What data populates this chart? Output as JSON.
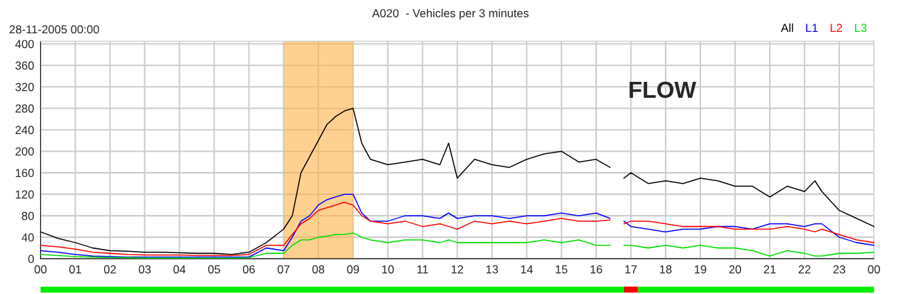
{
  "chart_data": {
    "type": "line",
    "title": "A020  - Vehicles per 3 minutes",
    "subtitle": "28-11-2005 00:00",
    "annotations": [
      "FLOW"
    ],
    "x": [
      0,
      0.5,
      1,
      1.5,
      2,
      2.5,
      3,
      3.5,
      4,
      4.5,
      5,
      5.5,
      6,
      6.5,
      7,
      7.25,
      7.5,
      7.75,
      8,
      8.25,
      8.5,
      8.75,
      9,
      9.25,
      9.5,
      10,
      10.5,
      11,
      11.5,
      11.75,
      12,
      12.5,
      13,
      13.5,
      14,
      14.5,
      15,
      15.5,
      16,
      16.4,
      16.6,
      16.8,
      17,
      17.5,
      18,
      18.5,
      19,
      19.5,
      20,
      20.5,
      21,
      21.5,
      22,
      22.3,
      22.5,
      23,
      23.5,
      24
    ],
    "series": [
      {
        "name": "All",
        "color": "#000000",
        "values": [
          50,
          38,
          30,
          20,
          15,
          14,
          12,
          12,
          11,
          10,
          10,
          8,
          12,
          30,
          55,
          80,
          160,
          190,
          220,
          250,
          265,
          275,
          280,
          215,
          185,
          175,
          180,
          185,
          175,
          215,
          150,
          185,
          175,
          170,
          185,
          195,
          200,
          180,
          185,
          170,
          null,
          150,
          160,
          140,
          145,
          140,
          150,
          145,
          135,
          135,
          115,
          135,
          125,
          145,
          125,
          90,
          75,
          60
        ]
      },
      {
        "name": "L1",
        "color": "#0000ff",
        "values": [
          15,
          12,
          8,
          5,
          4,
          3,
          3,
          3,
          3,
          3,
          3,
          3,
          3,
          20,
          15,
          40,
          70,
          80,
          100,
          110,
          115,
          120,
          120,
          85,
          70,
          70,
          80,
          80,
          75,
          85,
          75,
          80,
          80,
          75,
          80,
          80,
          85,
          80,
          85,
          75,
          null,
          70,
          60,
          55,
          50,
          55,
          55,
          60,
          60,
          55,
          65,
          65,
          60,
          65,
          65,
          40,
          30,
          25
        ]
      },
      {
        "name": "L2",
        "color": "#ff0000",
        "values": [
          25,
          22,
          18,
          12,
          10,
          8,
          7,
          7,
          7,
          6,
          6,
          6,
          8,
          25,
          25,
          45,
          65,
          75,
          90,
          95,
          100,
          105,
          100,
          80,
          70,
          65,
          70,
          60,
          65,
          60,
          55,
          70,
          65,
          70,
          65,
          70,
          75,
          70,
          70,
          72,
          null,
          65,
          70,
          70,
          65,
          60,
          60,
          60,
          55,
          55,
          55,
          60,
          55,
          50,
          55,
          45,
          35,
          30
        ]
      },
      {
        "name": "L3",
        "color": "#00dd00",
        "values": [
          8,
          6,
          4,
          3,
          2,
          2,
          1,
          1,
          1,
          1,
          1,
          1,
          2,
          10,
          10,
          25,
          35,
          35,
          40,
          42,
          45,
          45,
          48,
          40,
          35,
          30,
          35,
          35,
          30,
          35,
          30,
          30,
          30,
          30,
          30,
          35,
          30,
          35,
          25,
          25,
          null,
          25,
          25,
          20,
          25,
          20,
          25,
          20,
          20,
          15,
          5,
          15,
          10,
          5,
          5,
          10,
          10,
          12
        ]
      }
    ],
    "bands": [
      {
        "axis": "x",
        "from": 7,
        "to": 9,
        "color": "#ffb347"
      }
    ],
    "xlim": [
      0,
      24
    ],
    "xticks": [
      {
        "value": 0,
        "label": "00"
      },
      {
        "value": 1,
        "label": "01"
      },
      {
        "value": 2,
        "label": "02"
      },
      {
        "value": 3,
        "label": "03"
      },
      {
        "value": 4,
        "label": "04"
      },
      {
        "value": 5,
        "label": "05"
      },
      {
        "value": 6,
        "label": "06"
      },
      {
        "value": 7,
        "label": "07"
      },
      {
        "value": 8,
        "label": "08"
      },
      {
        "value": 9,
        "label": "09"
      },
      {
        "value": 10,
        "label": "10"
      },
      {
        "value": 11,
        "label": "11"
      },
      {
        "value": 12,
        "label": "12"
      },
      {
        "value": 13,
        "label": "13"
      },
      {
        "value": 14,
        "label": "14"
      },
      {
        "value": 15,
        "label": "15"
      },
      {
        "value": 16,
        "label": "16"
      },
      {
        "value": 17,
        "label": "17"
      },
      {
        "value": 18,
        "label": "18"
      },
      {
        "value": 19,
        "label": "19"
      },
      {
        "value": 20,
        "label": "20"
      },
      {
        "value": 21,
        "label": "21"
      },
      {
        "value": 22,
        "label": "22"
      },
      {
        "value": 23,
        "label": "23"
      },
      {
        "value": 24,
        "label": "00"
      }
    ],
    "ylim": [
      0,
      405
    ],
    "yticks": [
      0,
      40,
      80,
      120,
      160,
      200,
      240,
      280,
      320,
      360,
      400
    ],
    "grid": true,
    "legend": "top right",
    "marker": "none",
    "line_style": "solid"
  }
}
